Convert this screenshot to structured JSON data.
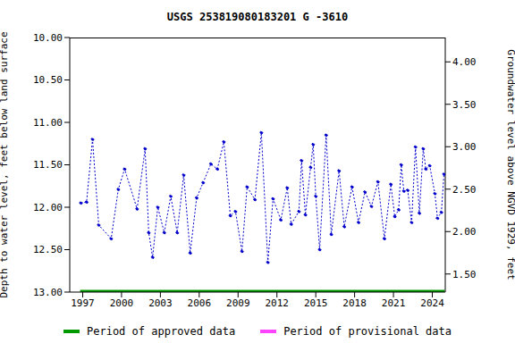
{
  "chart_data": {
    "type": "line",
    "title": "USGS 253819080183201 G  -3610",
    "x_label": "",
    "y_label": "Depth to water level, feet below land surface",
    "y2_label": "Groundwater level above NGVD 1929, feet",
    "x": [
      1996.86,
      1997.3,
      1997.76,
      1998.24,
      1999.2,
      1999.75,
      2000.24,
      2001.2,
      2001.82,
      2002.1,
      2002.4,
      2002.8,
      2003.3,
      2003.8,
      2004.3,
      2004.8,
      2005.3,
      2005.8,
      2006.3,
      2006.9,
      2007.4,
      2007.9,
      2008.4,
      2008.8,
      2009.3,
      2009.7,
      2010.3,
      2010.8,
      2011.3,
      2011.7,
      2012.3,
      2012.8,
      2013.1,
      2013.7,
      2013.9,
      2014.2,
      2014.6,
      2014.8,
      2015.0,
      2015.3,
      2015.8,
      2016.2,
      2016.8,
      2017.2,
      2017.8,
      2018.3,
      2018.8,
      2019.3,
      2019.8,
      2020.3,
      2020.8,
      2021.1,
      2021.4,
      2021.6,
      2021.8,
      2022.1,
      2022.4,
      2022.7,
      2023.0,
      2023.3,
      2023.5,
      2023.8,
      2024.2,
      2024.4,
      2024.7,
      2024.9
    ],
    "values": [
      11.95,
      11.94,
      11.2,
      12.21,
      12.37,
      11.79,
      11.55,
      12.02,
      11.31,
      12.3,
      12.59,
      12.0,
      12.3,
      11.87,
      12.3,
      11.62,
      12.54,
      11.89,
      11.71,
      11.49,
      11.55,
      11.23,
      12.1,
      12.05,
      12.52,
      11.76,
      11.91,
      11.12,
      12.65,
      11.9,
      12.15,
      11.77,
      12.2,
      12.05,
      11.45,
      12.09,
      11.53,
      11.26,
      11.87,
      12.5,
      11.15,
      12.32,
      11.57,
      12.23,
      11.76,
      12.18,
      11.82,
      11.99,
      11.7,
      12.37,
      11.73,
      12.11,
      12.03,
      11.5,
      11.81,
      11.8,
      12.18,
      11.29,
      12.07,
      11.31,
      11.55,
      11.51,
      11.84,
      12.13,
      12.06,
      11.61
    ],
    "color": "#0000cc",
    "marker": "circle",
    "line_style": "dotted",
    "grid": false,
    "legend": "bottom",
    "periods": [
      {
        "name": "Period of approved data",
        "color": "#009900",
        "start": 1996.8,
        "end": 2024.95,
        "level": 13
      },
      {
        "name": "Period of provisional data",
        "color": "#ff44ff"
      }
    ],
    "xlim": [
      1996.0,
      2025.0
    ],
    "xticks": [
      1997,
      2000,
      2003,
      2006,
      2009,
      2012,
      2015,
      2018,
      2021,
      2024
    ],
    "ylim": [
      13,
      10
    ],
    "yticks": [
      {
        "value": 10,
        "label": "10.00"
      },
      {
        "value": 10.5,
        "label": "10.50"
      },
      {
        "value": 11,
        "label": "11.00"
      },
      {
        "value": 11.5,
        "label": "11.50"
      },
      {
        "value": 12,
        "label": "12.00"
      },
      {
        "value": 12.5,
        "label": "12.50"
      },
      {
        "value": 13,
        "label": "13.00"
      }
    ],
    "y2lim": [
      1.287,
      4.287
    ],
    "y2ticks": [
      {
        "value": 1.5,
        "label": "1.50"
      },
      {
        "value": 2,
        "label": "2.00"
      },
      {
        "value": 2.5,
        "label": "2.50"
      },
      {
        "value": 3,
        "label": "3.00"
      },
      {
        "value": 3.5,
        "label": "3.50"
      },
      {
        "value": 4,
        "label": "4.00"
      }
    ]
  }
}
